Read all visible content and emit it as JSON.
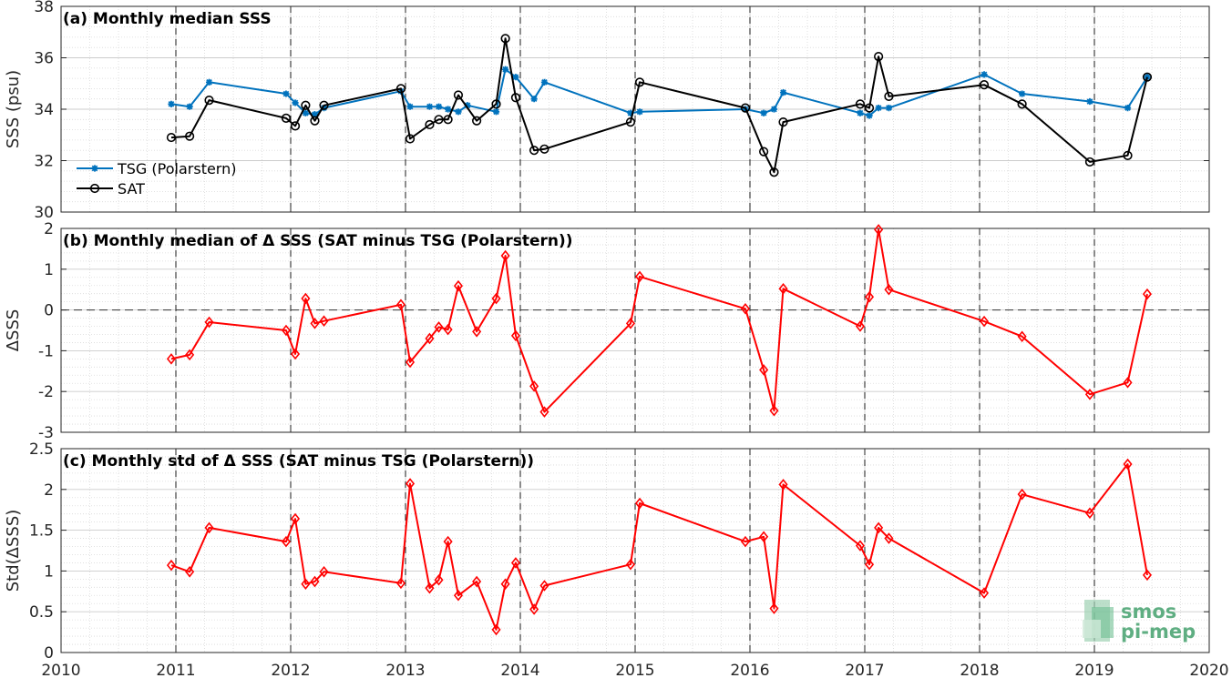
{
  "chart_data": [
    {
      "type": "line",
      "title": "(a) Monthly median SSS",
      "ylabel": "SSS (psu)",
      "xlim": [
        2010,
        2020
      ],
      "ylim": [
        30,
        38
      ],
      "yticks": [
        30,
        32,
        34,
        36,
        38
      ],
      "grid": true,
      "legend_position": "bottom-left",
      "series": [
        {
          "name": "TSG (Polarstern)",
          "color": "#0072BD",
          "marker": "asterisk",
          "x": [
            2010.96,
            2011.12,
            2011.29,
            2011.96,
            2012.04,
            2012.13,
            2012.21,
            2012.29,
            2012.96,
            2013.04,
            2013.21,
            2013.29,
            2013.37,
            2013.46,
            2013.54,
            2013.79,
            2013.87,
            2013.96,
            2014.12,
            2014.21,
            2014.96,
            2015.04,
            2015.96,
            2016.12,
            2016.21,
            2016.29,
            2016.96,
            2017.04,
            2017.12,
            2017.21,
            2018.04,
            2018.37,
            2018.96,
            2019.29,
            2019.46
          ],
          "y": [
            34.2,
            34.1,
            35.05,
            34.6,
            34.25,
            33.85,
            33.8,
            34.05,
            34.7,
            34.1,
            34.1,
            34.1,
            34.0,
            33.9,
            34.15,
            33.9,
            35.55,
            35.25,
            34.4,
            35.05,
            33.85,
            33.9,
            34.0,
            33.85,
            34.0,
            34.65,
            33.85,
            33.75,
            34.05,
            34.05,
            35.35,
            34.6,
            34.3,
            34.05,
            35.25
          ]
        },
        {
          "name": "SAT",
          "color": "#000000",
          "marker": "circle",
          "x": [
            2010.96,
            2011.12,
            2011.29,
            2011.96,
            2012.04,
            2012.13,
            2012.21,
            2012.29,
            2012.96,
            2013.04,
            2013.21,
            2013.29,
            2013.37,
            2013.46,
            2013.62,
            2013.79,
            2013.87,
            2013.96,
            2014.12,
            2014.21,
            2014.96,
            2015.04,
            2015.96,
            2016.12,
            2016.21,
            2016.29,
            2016.96,
            2017.04,
            2017.12,
            2017.21,
            2018.04,
            2018.37,
            2018.96,
            2019.29,
            2019.46
          ],
          "y": [
            32.9,
            32.95,
            34.35,
            33.65,
            33.35,
            34.15,
            33.55,
            34.15,
            34.8,
            32.85,
            33.4,
            33.6,
            33.6,
            34.55,
            33.55,
            34.2,
            36.75,
            34.45,
            32.4,
            32.45,
            33.5,
            35.05,
            34.05,
            32.35,
            31.55,
            33.5,
            34.2,
            34.05,
            36.05,
            34.5,
            34.95,
            34.2,
            31.95,
            32.2,
            35.25
          ]
        }
      ]
    },
    {
      "type": "line",
      "title": "(b) Monthly median of Δ SSS (SAT minus TSG (Polarstern))",
      "ylabel": "ΔSSS",
      "xlim": [
        2010,
        2020
      ],
      "ylim": [
        -3,
        2
      ],
      "yticks": [
        -3,
        -2,
        -1,
        0,
        1,
        2
      ],
      "grid": true,
      "reference_line": 0,
      "series": [
        {
          "color": "#FF0000",
          "marker": "diamond",
          "x": [
            2010.96,
            2011.12,
            2011.29,
            2011.96,
            2012.04,
            2012.13,
            2012.21,
            2012.29,
            2012.96,
            2013.04,
            2013.21,
            2013.29,
            2013.37,
            2013.46,
            2013.62,
            2013.79,
            2013.87,
            2013.96,
            2014.12,
            2014.21,
            2014.96,
            2015.04,
            2015.96,
            2016.12,
            2016.21,
            2016.29,
            2016.96,
            2017.04,
            2017.12,
            2017.21,
            2018.04,
            2018.37,
            2018.96,
            2019.29,
            2019.46
          ],
          "y": [
            -1.2,
            -1.1,
            -0.3,
            -0.5,
            -1.08,
            0.28,
            -0.33,
            -0.27,
            0.13,
            -1.28,
            -0.7,
            -0.42,
            -0.48,
            0.59,
            -0.53,
            0.28,
            1.33,
            -0.63,
            -1.87,
            -2.5,
            -0.33,
            0.82,
            0.03,
            -1.47,
            -2.47,
            0.52,
            -0.4,
            0.32,
            1.97,
            0.5,
            -0.28,
            -0.65,
            -2.07,
            -1.78,
            0.39
          ]
        }
      ]
    },
    {
      "type": "line",
      "title": "(c) Monthly std of Δ SSS (SAT minus TSG (Polarstern))",
      "ylabel": "Std(ΔSSS)",
      "xlim": [
        2010,
        2020
      ],
      "ylim": [
        0,
        2.5
      ],
      "yticks": [
        0,
        0.5,
        1,
        1.5,
        2,
        2.5
      ],
      "xticks": [
        2010,
        2011,
        2012,
        2013,
        2014,
        2015,
        2016,
        2017,
        2018,
        2019,
        2020
      ],
      "grid": true,
      "series": [
        {
          "color": "#FF0000",
          "marker": "diamond",
          "x": [
            2010.96,
            2011.12,
            2011.29,
            2011.96,
            2012.04,
            2012.13,
            2012.21,
            2012.29,
            2012.96,
            2013.04,
            2013.21,
            2013.29,
            2013.37,
            2013.46,
            2013.62,
            2013.79,
            2013.87,
            2013.96,
            2014.12,
            2014.21,
            2014.96,
            2015.04,
            2015.96,
            2016.12,
            2016.21,
            2016.29,
            2016.96,
            2017.04,
            2017.12,
            2017.21,
            2018.04,
            2018.37,
            2018.96,
            2019.29,
            2019.46
          ],
          "y": [
            1.07,
            0.99,
            1.53,
            1.36,
            1.64,
            0.84,
            0.87,
            0.99,
            0.85,
            2.07,
            0.79,
            0.89,
            1.36,
            0.7,
            0.87,
            0.28,
            0.84,
            1.1,
            0.53,
            0.82,
            1.08,
            1.83,
            1.36,
            1.42,
            0.54,
            2.06,
            1.31,
            1.08,
            1.53,
            1.4,
            0.73,
            1.94,
            1.71,
            2.31,
            0.95
          ]
        }
      ]
    }
  ],
  "logo": {
    "line1": "smos",
    "line2": "pi-mep",
    "color": "#5fae82"
  }
}
